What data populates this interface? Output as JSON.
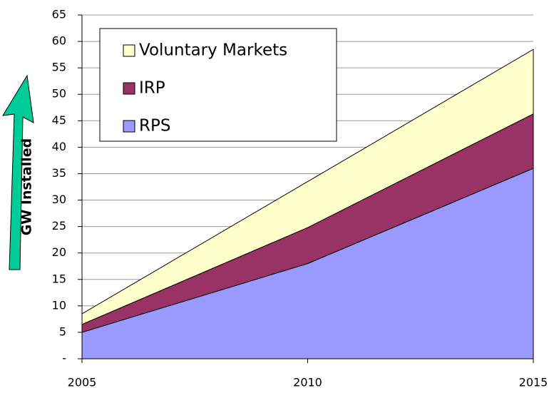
{
  "chart_data": {
    "type": "stacked_area",
    "y_label": "GW Installed",
    "x": [
      2005,
      2010,
      2015
    ],
    "xlim": [
      2005,
      2015
    ],
    "xticks": [
      2005,
      2010,
      2015
    ],
    "ylim": [
      0,
      65
    ],
    "yticks": [
      {
        "value": 0,
        "label": "-"
      },
      5,
      10,
      15,
      20,
      25,
      30,
      35,
      40,
      45,
      50,
      55,
      60,
      65
    ],
    "grid": true,
    "series": [
      {
        "name": "RPS",
        "color": "#9999ff",
        "values": [
          5,
          18,
          36
        ]
      },
      {
        "name": "IRP",
        "color": "#993366",
        "values": [
          1.5,
          6.8,
          10.3
        ]
      },
      {
        "name": "Voluntary Markets",
        "color": "#ffffcc",
        "values": [
          2,
          8.7,
          12.2
        ]
      }
    ]
  }
}
